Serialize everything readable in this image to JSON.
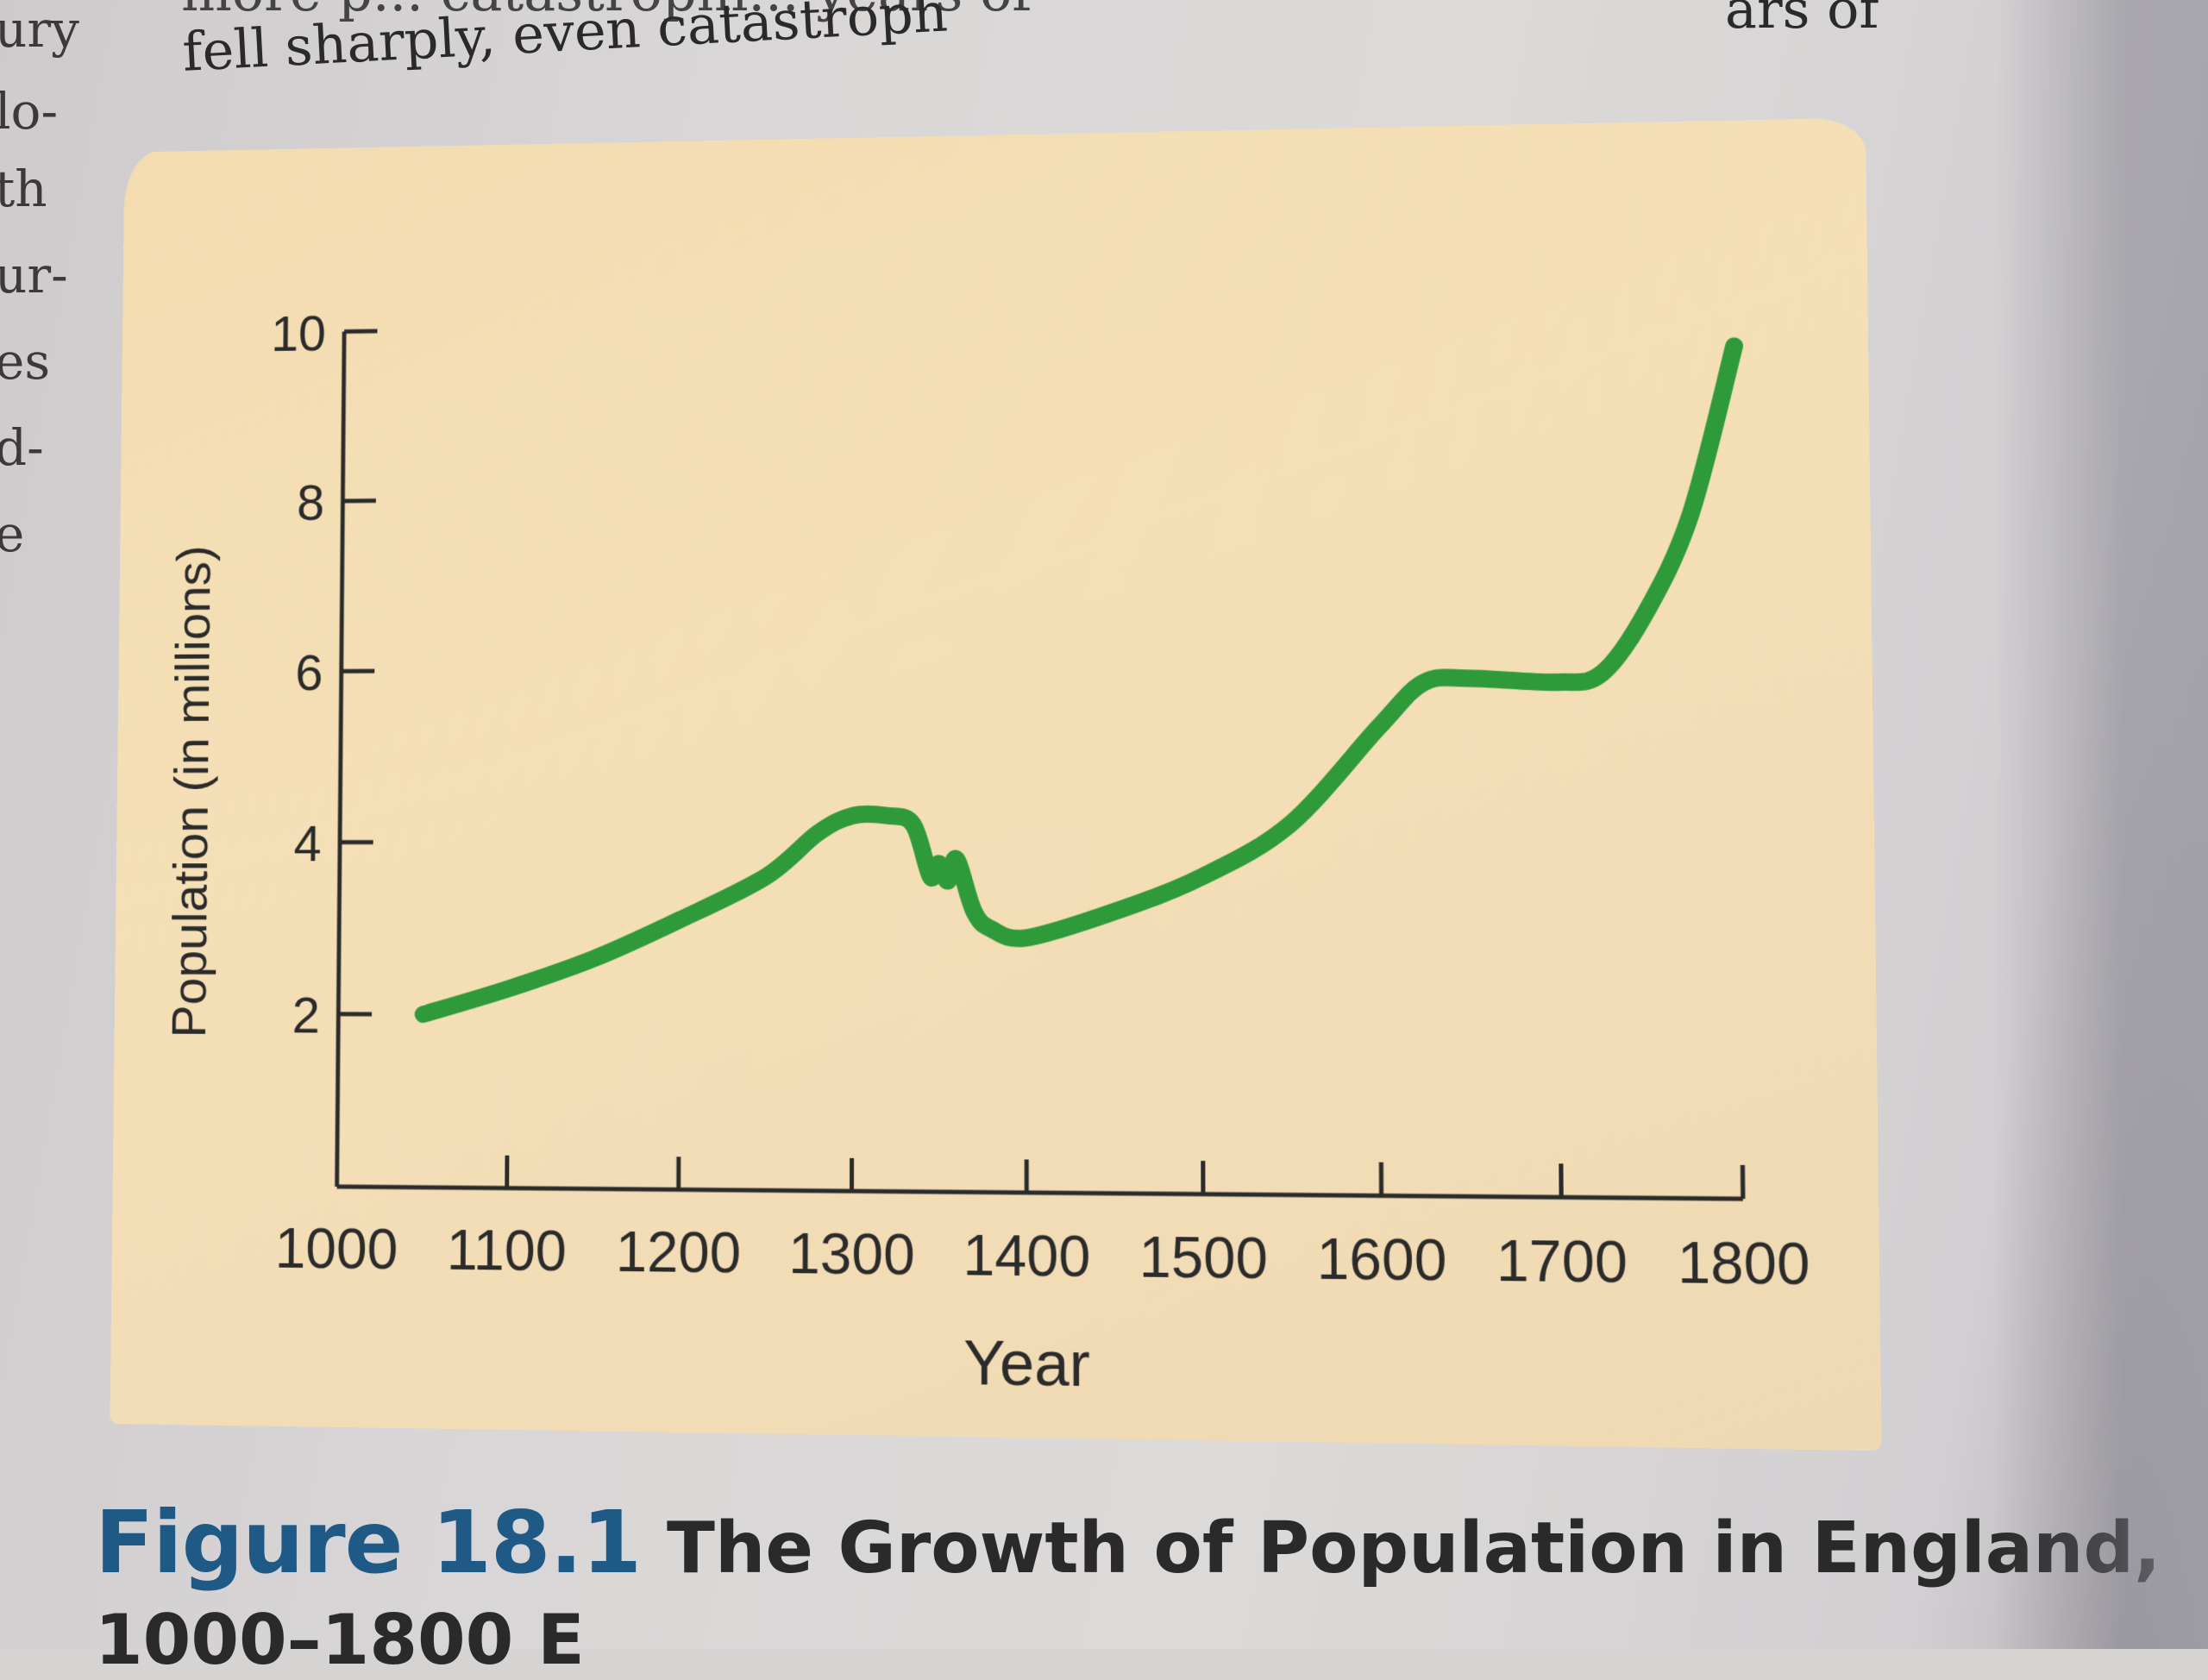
{
  "book": {
    "body_line_top": "more p... catastrophi... years of",
    "body_line_visible": "fell sharply, even catastroph",
    "body_line_right": "ars of",
    "margin_fragments": [
      "ury",
      "lo-",
      "th",
      "ur-",
      "es",
      "d-",
      "e"
    ]
  },
  "chart_data": {
    "type": "line",
    "title": "",
    "xlabel": "Year",
    "ylabel": "Population (in millions)",
    "xlim": [
      1000,
      1800
    ],
    "ylim": [
      0,
      10
    ],
    "x_ticks": [
      1000,
      1100,
      1200,
      1300,
      1400,
      1500,
      1600,
      1700,
      1800
    ],
    "y_ticks": [
      2,
      4,
      6,
      8,
      10
    ],
    "grid": false,
    "legend": "none",
    "line_color": "#2f9a3a",
    "series": [
      {
        "x": [
          1050,
          1100,
          1150,
          1200,
          1250,
          1280,
          1300,
          1320,
          1335,
          1345,
          1350,
          1355,
          1360,
          1370,
          1380,
          1400,
          1450,
          1500,
          1550,
          1600,
          1625,
          1650,
          1700,
          1725,
          1750,
          1775,
          1800
        ],
        "y": [
          2.0,
          2.3,
          2.65,
          3.1,
          3.6,
          4.1,
          4.3,
          4.3,
          4.2,
          3.6,
          3.75,
          3.55,
          3.8,
          3.2,
          3.0,
          2.9,
          3.2,
          3.6,
          4.2,
          5.3,
          5.8,
          5.85,
          5.8,
          5.9,
          6.6,
          7.7,
          9.6
        ]
      }
    ]
  },
  "caption": {
    "figure_number": "Figure 18.1",
    "title": "The Growth of Population in England,",
    "line2": "1000–1800  E"
  }
}
